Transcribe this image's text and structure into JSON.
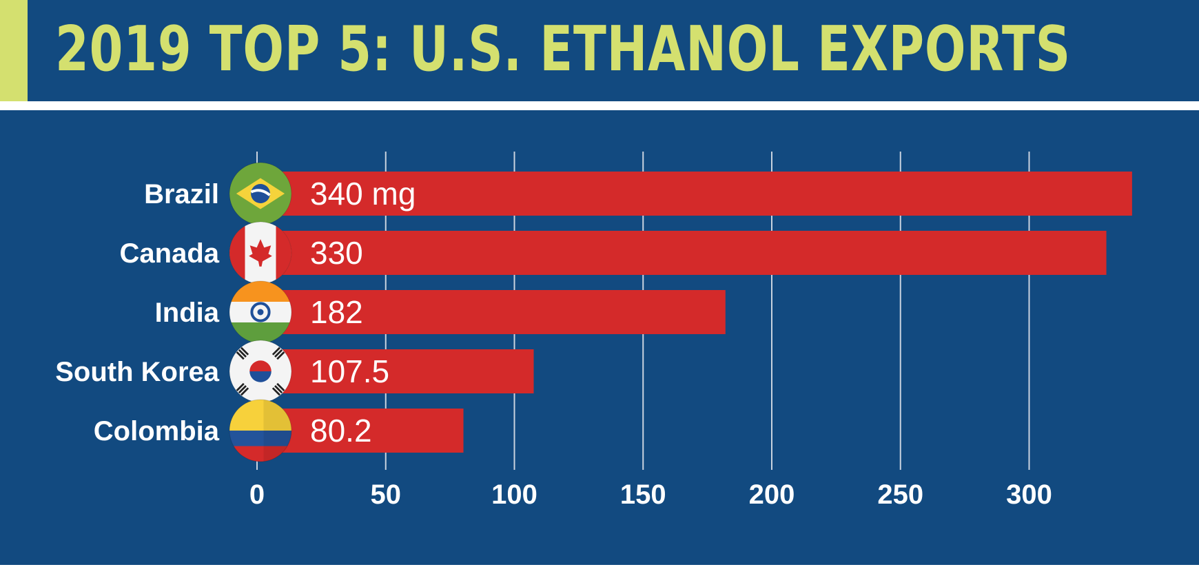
{
  "header": {
    "title": "2019 TOP 5: U.S. ETHANOL EXPORTS"
  },
  "colors": {
    "background": "#124a80",
    "title": "#d4e06f",
    "bar": "#d42a2a",
    "grid": "#c9d3df",
    "text": "#ffffff"
  },
  "chart_data": {
    "type": "bar",
    "orientation": "horizontal",
    "title": "2019 TOP 5: U.S. ETHANOL EXPORTS",
    "categories": [
      "Brazil",
      "Canada",
      "India",
      "South Korea",
      "Colombia"
    ],
    "values": [
      340,
      330,
      182,
      107.5,
      80.2
    ],
    "value_labels": [
      "340 mg",
      "330",
      "182",
      "107.5",
      "80.2"
    ],
    "xlim": [
      0,
      345
    ],
    "xticks": [
      0,
      50,
      100,
      150,
      200,
      250,
      300
    ],
    "grid": true,
    "flags": [
      "brazil-flag-icon",
      "canada-flag-icon",
      "india-flag-icon",
      "south-korea-flag-icon",
      "colombia-flag-icon"
    ]
  }
}
